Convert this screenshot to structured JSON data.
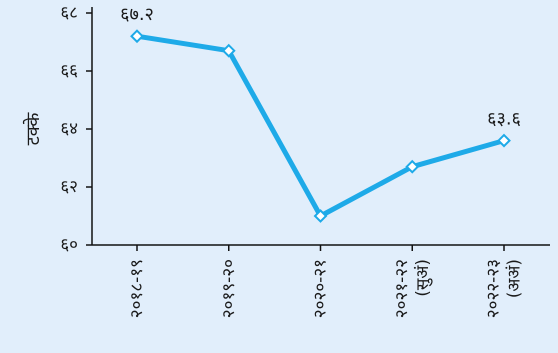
{
  "chart_data": {
    "type": "line",
    "title": "",
    "xlabel": "",
    "ylabel": "टक्के",
    "ylim": [
      60,
      68
    ],
    "yticks": [
      60,
      62,
      64,
      66,
      68
    ],
    "ytick_labels": [
      "६०",
      "६२",
      "६४",
      "६६",
      "६८"
    ],
    "categories": [
      [
        "२०१८-१९"
      ],
      [
        "२०१९-२०"
      ],
      [
        "२०२०-२१"
      ],
      [
        "२०२१-२२",
        "(सुअं)"
      ],
      [
        "२०२२-२३",
        "(अअं)"
      ]
    ],
    "series": [
      {
        "values": [
          67.2,
          66.7,
          61.0,
          62.7,
          63.6
        ],
        "color": "#1eaae8"
      }
    ],
    "data_labels": [
      {
        "index": 0,
        "text": "६७.२"
      },
      {
        "index": 4,
        "text": "६३.६"
      }
    ],
    "grid": false,
    "legend": "none"
  }
}
